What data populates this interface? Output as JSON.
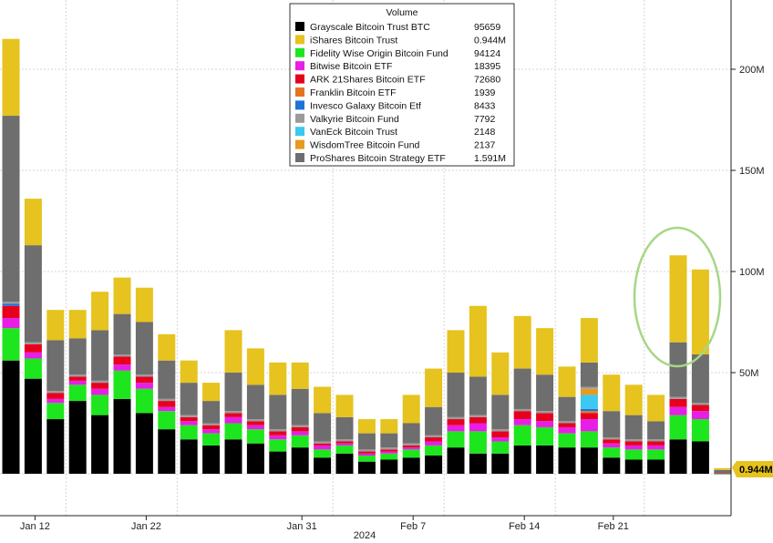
{
  "chart_data": {
    "type": "bar",
    "stacked": true,
    "legend": {
      "title": "Volume",
      "placement": "top-center"
    },
    "x_axis": {
      "tick_labels": [
        "Jan 12",
        "Jan 22",
        "Jan 31",
        "Feb 7",
        "Feb 14",
        "Feb 21"
      ],
      "tick_indices": [
        1,
        6,
        13,
        18,
        23,
        27
      ],
      "year_label": "2024"
    },
    "y_axis": {
      "position": "right",
      "tick_labels": [
        "50M",
        "100M",
        "150M",
        "200M"
      ],
      "tick_values": [
        50,
        100,
        150,
        200
      ],
      "unit": "millions",
      "ylim": [
        -20,
        234
      ]
    },
    "grid": true,
    "last_value_badge": "0.944M",
    "highlight_circle": {
      "covers_indices": [
        30,
        31
      ],
      "color": "#a6d785"
    },
    "series": [
      {
        "name": "Grayscale Bitcoin Trust BTC",
        "last": "95659",
        "color": "#000000"
      },
      {
        "name": "iShares Bitcoin Trust",
        "last": "0.944M",
        "color": "#e6c31e"
      },
      {
        "name": "Fidelity Wise Origin Bitcoin Fund",
        "last": "94124",
        "color": "#1ee61e"
      },
      {
        "name": "Bitwise Bitcoin ETF",
        "last": "18395",
        "color": "#e61ee6"
      },
      {
        "name": "ARK 21Shares Bitcoin ETF",
        "last": "72680",
        "color": "#e6001e"
      },
      {
        "name": "Franklin Bitcoin ETF",
        "last": "1939",
        "color": "#e6731e"
      },
      {
        "name": "Invesco Galaxy Bitcoin Etf",
        "last": "8433",
        "color": "#1e73d7"
      },
      {
        "name": "Valkyrie Bitcoin Fund",
        "last": "7792",
        "color": "#9b9b9b"
      },
      {
        "name": "VanEck Bitcoin Trust",
        "last": "2148",
        "color": "#3cc8f0"
      },
      {
        "name": "WisdomTree Bitcoin Fund",
        "last": "2137",
        "color": "#e69b1e"
      },
      {
        "name": "ProShares Bitcoin Strategy ETF",
        "last": "1.591M",
        "color": "#6e6e6e"
      }
    ],
    "stack_order": [
      "Grayscale Bitcoin Trust BTC",
      "Fidelity Wise Origin Bitcoin Fund",
      "Bitwise Bitcoin ETF",
      "ARK 21Shares Bitcoin ETF",
      "Franklin Bitcoin ETF",
      "Invesco Galaxy Bitcoin Etf",
      "VanEck Bitcoin Trust",
      "WisdomTree Bitcoin Fund",
      "Valkyrie Bitcoin Fund",
      "ProShares Bitcoin Strategy ETF",
      "iShares Bitcoin Trust"
    ],
    "bars": [
      {
        "Grayscale Bitcoin Trust BTC": 56,
        "Fidelity Wise Origin Bitcoin Fund": 16,
        "Bitwise Bitcoin ETF": 5,
        "ARK 21Shares Bitcoin ETF": 6,
        "Invesco Galaxy Bitcoin Etf": 1,
        "Valkyrie Bitcoin Fund": 1,
        "ProShares Bitcoin Strategy ETF": 92,
        "iShares Bitcoin Trust": 38
      },
      {
        "Grayscale Bitcoin Trust BTC": 47,
        "Fidelity Wise Origin Bitcoin Fund": 10,
        "Bitwise Bitcoin ETF": 3,
        "ARK 21Shares Bitcoin ETF": 4,
        "Valkyrie Bitcoin Fund": 1,
        "ProShares Bitcoin Strategy ETF": 48,
        "iShares Bitcoin Trust": 23
      },
      {
        "Grayscale Bitcoin Trust BTC": 27,
        "Fidelity Wise Origin Bitcoin Fund": 8,
        "Bitwise Bitcoin ETF": 2,
        "ARK 21Shares Bitcoin ETF": 3,
        "Valkyrie Bitcoin Fund": 1,
        "ProShares Bitcoin Strategy ETF": 25,
        "iShares Bitcoin Trust": 15
      },
      {
        "Grayscale Bitcoin Trust BTC": 36,
        "Fidelity Wise Origin Bitcoin Fund": 8,
        "Bitwise Bitcoin ETF": 2,
        "ARK 21Shares Bitcoin ETF": 2,
        "Valkyrie Bitcoin Fund": 1,
        "ProShares Bitcoin Strategy ETF": 18,
        "iShares Bitcoin Trust": 14
      },
      {
        "Grayscale Bitcoin Trust BTC": 29,
        "Fidelity Wise Origin Bitcoin Fund": 10,
        "Bitwise Bitcoin ETF": 3,
        "ARK 21Shares Bitcoin ETF": 3,
        "Valkyrie Bitcoin Fund": 1,
        "ProShares Bitcoin Strategy ETF": 25,
        "iShares Bitcoin Trust": 19
      },
      {
        "Grayscale Bitcoin Trust BTC": 37,
        "Fidelity Wise Origin Bitcoin Fund": 14,
        "Bitwise Bitcoin ETF": 3,
        "ARK 21Shares Bitcoin ETF": 4,
        "Valkyrie Bitcoin Fund": 1,
        "ProShares Bitcoin Strategy ETF": 20,
        "iShares Bitcoin Trust": 18
      },
      {
        "Grayscale Bitcoin Trust BTC": 30,
        "Fidelity Wise Origin Bitcoin Fund": 12,
        "Bitwise Bitcoin ETF": 3,
        "ARK 21Shares Bitcoin ETF": 3,
        "Valkyrie Bitcoin Fund": 1,
        "ProShares Bitcoin Strategy ETF": 26,
        "iShares Bitcoin Trust": 17
      },
      {
        "Grayscale Bitcoin Trust BTC": 22,
        "Fidelity Wise Origin Bitcoin Fund": 9,
        "Bitwise Bitcoin ETF": 2,
        "ARK 21Shares Bitcoin ETF": 3,
        "Valkyrie Bitcoin Fund": 1,
        "ProShares Bitcoin Strategy ETF": 19,
        "iShares Bitcoin Trust": 13
      },
      {
        "Grayscale Bitcoin Trust BTC": 17,
        "Fidelity Wise Origin Bitcoin Fund": 7,
        "Bitwise Bitcoin ETF": 2,
        "ARK 21Shares Bitcoin ETF": 2,
        "Valkyrie Bitcoin Fund": 1,
        "ProShares Bitcoin Strategy ETF": 16,
        "iShares Bitcoin Trust": 11
      },
      {
        "Grayscale Bitcoin Trust BTC": 14,
        "Fidelity Wise Origin Bitcoin Fund": 6,
        "Bitwise Bitcoin ETF": 2,
        "ARK 21Shares Bitcoin ETF": 2,
        "Valkyrie Bitcoin Fund": 1,
        "ProShares Bitcoin Strategy ETF": 11,
        "iShares Bitcoin Trust": 9
      },
      {
        "Grayscale Bitcoin Trust BTC": 17,
        "Fidelity Wise Origin Bitcoin Fund": 8,
        "Bitwise Bitcoin ETF": 3,
        "ARK 21Shares Bitcoin ETF": 2,
        "Valkyrie Bitcoin Fund": 1,
        "ProShares Bitcoin Strategy ETF": 19,
        "iShares Bitcoin Trust": 21
      },
      {
        "Grayscale Bitcoin Trust BTC": 15,
        "Fidelity Wise Origin Bitcoin Fund": 7,
        "Bitwise Bitcoin ETF": 2,
        "ARK 21Shares Bitcoin ETF": 2,
        "Valkyrie Bitcoin Fund": 1,
        "ProShares Bitcoin Strategy ETF": 17,
        "iShares Bitcoin Trust": 18
      },
      {
        "Grayscale Bitcoin Trust BTC": 11,
        "Fidelity Wise Origin Bitcoin Fund": 6,
        "Bitwise Bitcoin ETF": 2,
        "ARK 21Shares Bitcoin ETF": 2,
        "Valkyrie Bitcoin Fund": 1,
        "ProShares Bitcoin Strategy ETF": 17,
        "iShares Bitcoin Trust": 16
      },
      {
        "Grayscale Bitcoin Trust BTC": 13,
        "Fidelity Wise Origin Bitcoin Fund": 6,
        "Bitwise Bitcoin ETF": 2,
        "ARK 21Shares Bitcoin ETF": 2,
        "Valkyrie Bitcoin Fund": 1,
        "ProShares Bitcoin Strategy ETF": 18,
        "iShares Bitcoin Trust": 13
      },
      {
        "Grayscale Bitcoin Trust BTC": 8,
        "Fidelity Wise Origin Bitcoin Fund": 4,
        "Bitwise Bitcoin ETF": 2,
        "ARK 21Shares Bitcoin ETF": 1,
        "Valkyrie Bitcoin Fund": 1,
        "ProShares Bitcoin Strategy ETF": 14,
        "iShares Bitcoin Trust": 13
      },
      {
        "Grayscale Bitcoin Trust BTC": 10,
        "Fidelity Wise Origin Bitcoin Fund": 4,
        "Bitwise Bitcoin ETF": 1,
        "ARK 21Shares Bitcoin ETF": 1,
        "Valkyrie Bitcoin Fund": 1,
        "ProShares Bitcoin Strategy ETF": 11,
        "iShares Bitcoin Trust": 11
      },
      {
        "Grayscale Bitcoin Trust BTC": 6,
        "Fidelity Wise Origin Bitcoin Fund": 3,
        "Bitwise Bitcoin ETF": 1,
        "ARK 21Shares Bitcoin ETF": 1,
        "Valkyrie Bitcoin Fund": 1,
        "ProShares Bitcoin Strategy ETF": 8,
        "iShares Bitcoin Trust": 7
      },
      {
        "Grayscale Bitcoin Trust BTC": 7,
        "Fidelity Wise Origin Bitcoin Fund": 3,
        "Bitwise Bitcoin ETF": 1,
        "ARK 21Shares Bitcoin ETF": 1,
        "Valkyrie Bitcoin Fund": 1,
        "ProShares Bitcoin Strategy ETF": 7,
        "iShares Bitcoin Trust": 7
      },
      {
        "Grayscale Bitcoin Trust BTC": 8,
        "Fidelity Wise Origin Bitcoin Fund": 4,
        "Bitwise Bitcoin ETF": 1,
        "ARK 21Shares Bitcoin ETF": 1,
        "Valkyrie Bitcoin Fund": 1,
        "ProShares Bitcoin Strategy ETF": 10,
        "iShares Bitcoin Trust": 14
      },
      {
        "Grayscale Bitcoin Trust BTC": 9,
        "Fidelity Wise Origin Bitcoin Fund": 5,
        "Bitwise Bitcoin ETF": 2,
        "ARK 21Shares Bitcoin ETF": 2,
        "Valkyrie Bitcoin Fund": 1,
        "ProShares Bitcoin Strategy ETF": 14,
        "iShares Bitcoin Trust": 19
      },
      {
        "Grayscale Bitcoin Trust BTC": 13,
        "Fidelity Wise Origin Bitcoin Fund": 8,
        "Bitwise Bitcoin ETF": 3,
        "ARK 21Shares Bitcoin ETF": 3,
        "Valkyrie Bitcoin Fund": 1,
        "ProShares Bitcoin Strategy ETF": 22,
        "iShares Bitcoin Trust": 21
      },
      {
        "Grayscale Bitcoin Trust BTC": 10,
        "Fidelity Wise Origin Bitcoin Fund": 11,
        "Bitwise Bitcoin ETF": 4,
        "ARK 21Shares Bitcoin ETF": 3,
        "Valkyrie Bitcoin Fund": 1,
        "ProShares Bitcoin Strategy ETF": 19,
        "iShares Bitcoin Trust": 35
      },
      {
        "Grayscale Bitcoin Trust BTC": 10,
        "Fidelity Wise Origin Bitcoin Fund": 6,
        "Bitwise Bitcoin ETF": 2,
        "ARK 21Shares Bitcoin ETF": 3,
        "Valkyrie Bitcoin Fund": 1,
        "ProShares Bitcoin Strategy ETF": 17,
        "iShares Bitcoin Trust": 21
      },
      {
        "Grayscale Bitcoin Trust BTC": 14,
        "Fidelity Wise Origin Bitcoin Fund": 10,
        "Bitwise Bitcoin ETF": 3,
        "ARK 21Shares Bitcoin ETF": 4,
        "Valkyrie Bitcoin Fund": 1,
        "ProShares Bitcoin Strategy ETF": 20,
        "iShares Bitcoin Trust": 26
      },
      {
        "Grayscale Bitcoin Trust BTC": 14,
        "Fidelity Wise Origin Bitcoin Fund": 9,
        "Bitwise Bitcoin ETF": 3,
        "ARK 21Shares Bitcoin ETF": 4,
        "Valkyrie Bitcoin Fund": 1,
        "ProShares Bitcoin Strategy ETF": 18,
        "iShares Bitcoin Trust": 23
      },
      {
        "Grayscale Bitcoin Trust BTC": 13,
        "Fidelity Wise Origin Bitcoin Fund": 7,
        "Bitwise Bitcoin ETF": 3,
        "ARK 21Shares Bitcoin ETF": 2,
        "Valkyrie Bitcoin Fund": 1,
        "ProShares Bitcoin Strategy ETF": 12,
        "iShares Bitcoin Trust": 15
      },
      {
        "Grayscale Bitcoin Trust BTC": 13,
        "Fidelity Wise Origin Bitcoin Fund": 8,
        "Bitwise Bitcoin ETF": 6,
        "ARK 21Shares Bitcoin ETF": 3,
        "Franklin Bitcoin ETF": 1,
        "Invesco Galaxy Bitcoin Etf": 1,
        "VanEck Bitcoin Trust": 7,
        "WisdomTree Bitcoin Fund": 3,
        "Valkyrie Bitcoin Fund": 1,
        "ProShares Bitcoin Strategy ETF": 12,
        "iShares Bitcoin Trust": 22
      },
      {
        "Grayscale Bitcoin Trust BTC": 8,
        "Fidelity Wise Origin Bitcoin Fund": 5,
        "Bitwise Bitcoin ETF": 2,
        "ARK 21Shares Bitcoin ETF": 2,
        "Valkyrie Bitcoin Fund": 1,
        "ProShares Bitcoin Strategy ETF": 13,
        "iShares Bitcoin Trust": 18
      },
      {
        "Grayscale Bitcoin Trust BTC": 7,
        "Fidelity Wise Origin Bitcoin Fund": 5,
        "Bitwise Bitcoin ETF": 2,
        "ARK 21Shares Bitcoin ETF": 2,
        "Valkyrie Bitcoin Fund": 1,
        "ProShares Bitcoin Strategy ETF": 12,
        "iShares Bitcoin Trust": 15
      },
      {
        "Grayscale Bitcoin Trust BTC": 7,
        "Fidelity Wise Origin Bitcoin Fund": 5,
        "Bitwise Bitcoin ETF": 2,
        "ARK 21Shares Bitcoin ETF": 2,
        "Valkyrie Bitcoin Fund": 1,
        "ProShares Bitcoin Strategy ETF": 9,
        "iShares Bitcoin Trust": 13
      },
      {
        "Grayscale Bitcoin Trust BTC": 17,
        "Fidelity Wise Origin Bitcoin Fund": 12,
        "Bitwise Bitcoin ETF": 4,
        "ARK 21Shares Bitcoin ETF": 4,
        "Valkyrie Bitcoin Fund": 1,
        "ProShares Bitcoin Strategy ETF": 27,
        "iShares Bitcoin Trust": 43
      },
      {
        "Grayscale Bitcoin Trust BTC": 16,
        "Fidelity Wise Origin Bitcoin Fund": 11,
        "Bitwise Bitcoin ETF": 4,
        "ARK 21Shares Bitcoin ETF": 3,
        "Valkyrie Bitcoin Fund": 1,
        "ProShares Bitcoin Strategy ETF": 24,
        "iShares Bitcoin Trust": 42
      },
      {
        "Grayscale Bitcoin Trust BTC": 0.1,
        "Fidelity Wise Origin Bitcoin Fund": 0.1,
        "ARK 21Shares Bitcoin ETF": 0.1,
        "ProShares Bitcoin Strategy ETF": 1.6,
        "iShares Bitcoin Trust": 0.9
      }
    ]
  }
}
